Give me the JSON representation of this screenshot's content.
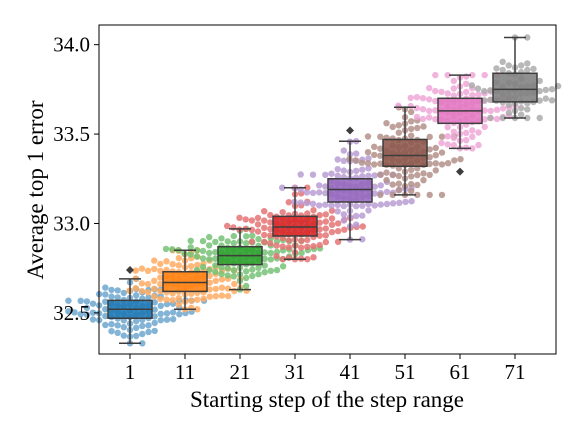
{
  "chart_data": {
    "type": "box",
    "xlabel": "Starting step of the step range",
    "ylabel": "Average top 1 error",
    "categories": [
      "1",
      "11",
      "21",
      "31",
      "41",
      "51",
      "61",
      "71"
    ],
    "yticks": [
      "32.5",
      "33.0",
      "33.5",
      "34.0"
    ],
    "ylim": [
      32.27,
      34.11
    ],
    "grid": false,
    "legend": "none",
    "series": [
      {
        "category": "1",
        "color": "#1f77b4",
        "q1": 32.47,
        "median": 32.52,
        "q3": 32.57,
        "whisker_low": 32.33,
        "whisker_high": 32.69,
        "outliers": [
          32.74
        ],
        "count": 100
      },
      {
        "category": "11",
        "color": "#ff7f0e",
        "q1": 32.62,
        "median": 32.67,
        "q3": 32.73,
        "whisker_low": 32.52,
        "whisker_high": 32.85,
        "outliers": [],
        "count": 100
      },
      {
        "category": "21",
        "color": "#2ca02c",
        "q1": 32.77,
        "median": 32.82,
        "q3": 32.87,
        "whisker_low": 32.63,
        "whisker_high": 32.97,
        "outliers": [],
        "count": 100
      },
      {
        "category": "31",
        "color": "#d62728",
        "q1": 32.93,
        "median": 32.98,
        "q3": 33.04,
        "whisker_low": 32.8,
        "whisker_high": 33.2,
        "outliers": [],
        "count": 100
      },
      {
        "category": "41",
        "color": "#9467bd",
        "q1": 33.12,
        "median": 33.19,
        "q3": 33.25,
        "whisker_low": 32.91,
        "whisker_high": 33.46,
        "outliers": [
          33.52
        ],
        "count": 100
      },
      {
        "category": "51",
        "color": "#8c564b",
        "q1": 33.32,
        "median": 33.38,
        "q3": 33.47,
        "whisker_low": 33.16,
        "whisker_high": 33.65,
        "outliers": [],
        "count": 100
      },
      {
        "category": "61",
        "color": "#e377c2",
        "q1": 33.56,
        "median": 33.63,
        "q3": 33.7,
        "whisker_low": 33.42,
        "whisker_high": 33.83,
        "outliers": [
          33.29
        ],
        "count": 100
      },
      {
        "category": "71",
        "color": "#7f7f7f",
        "q1": 33.68,
        "median": 33.75,
        "q3": 33.84,
        "whisker_low": 33.59,
        "whisker_high": 34.04,
        "outliers": [],
        "count": 60
      }
    ]
  }
}
